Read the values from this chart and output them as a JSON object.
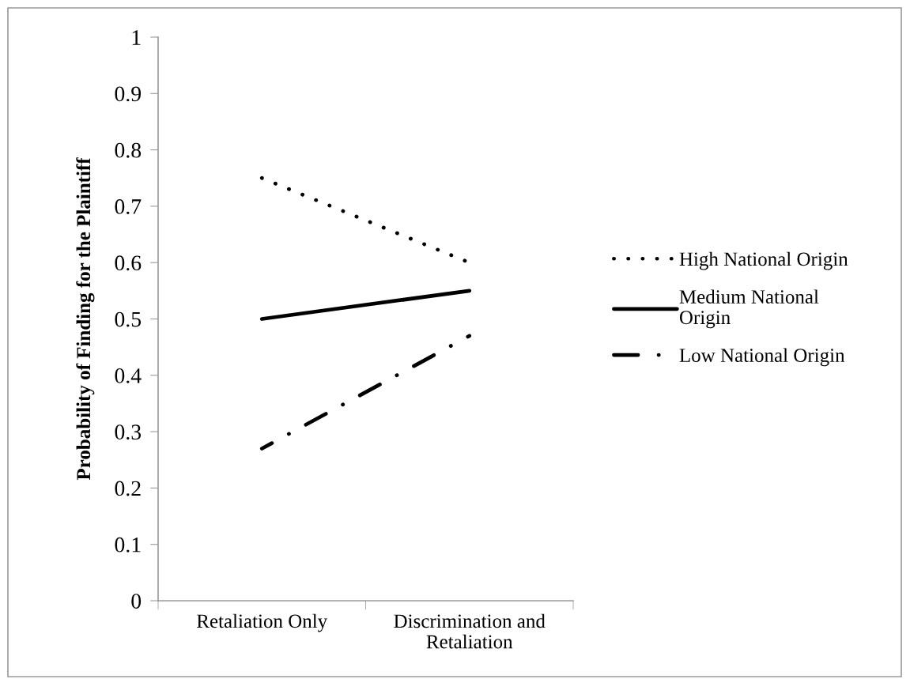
{
  "chart_data": {
    "type": "line",
    "ylabel": "Probability of Finding for the Plaintiff",
    "categories": [
      "Retaliation Only",
      "Discrimination and\nRetaliation"
    ],
    "series": [
      {
        "name": "High National Origin",
        "color": "#000000",
        "values": [
          0.75,
          0.6
        ],
        "line_style": "dotted"
      },
      {
        "name": "Medium National\nOrigin",
        "color": "#000000",
        "values": [
          0.5,
          0.55
        ],
        "line_style": "solid"
      },
      {
        "name": "Low National Origin",
        "color": "#000000",
        "values": [
          0.27,
          0.47
        ],
        "line_style": "dashdot"
      }
    ],
    "ylim": [
      0,
      1
    ],
    "yticks": [
      0,
      0.1,
      0.2,
      0.3,
      0.4,
      0.5,
      0.6,
      0.7,
      0.8,
      0.9,
      1
    ],
    "grid": false,
    "legend": "right",
    "marker": "none"
  }
}
